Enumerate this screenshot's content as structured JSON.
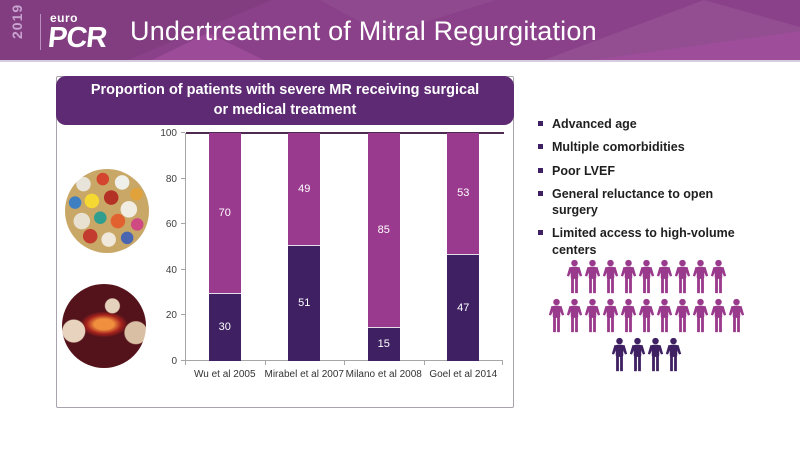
{
  "header": {
    "year": "2019",
    "logo_top": "euro",
    "logo_main": "PCR",
    "title": "Undertreatment of Mitral Regurgitation"
  },
  "chart_data": {
    "type": "bar",
    "stacked": true,
    "title": "Proportion of patients with severe MR receiving surgical or medical treatment",
    "categories": [
      "Wu et al 2005",
      "Mirabel et al 2007",
      "Milano et al 2008",
      "Goel et al 2014"
    ],
    "series": [
      {
        "name": "Surgical treatment",
        "color": "#3f2163",
        "values": [
          30,
          51,
          15,
          47
        ]
      },
      {
        "name": "Medical treatment",
        "color": "#9a3a8e",
        "values": [
          70,
          49,
          85,
          53
        ]
      }
    ],
    "ylabel": "",
    "xlabel": "",
    "ylim": [
      0,
      100
    ],
    "yticks": [
      0,
      20,
      40,
      60,
      80,
      100
    ],
    "grid": false,
    "legend": "none"
  },
  "images": {
    "pills": "photo-of-assorted-pills",
    "surgery": "photo-of-open-heart-surgery"
  },
  "bullets": {
    "items": [
      "Advanced age",
      "Multiple comorbidities",
      "Poor LVEF",
      "General reluctance to open surgery",
      "Limited access to high-volume centers"
    ]
  },
  "pictogram": {
    "rows": [
      {
        "count": 9,
        "color": "#993a8c"
      },
      {
        "count": 11,
        "color": "#993a8c"
      },
      {
        "count": 4,
        "color": "#3f2163"
      }
    ]
  },
  "colors": {
    "header_background": "#8a4189",
    "panel_title_background": "#5e2a74",
    "bar_medical": "#9a3a8e",
    "bar_surgical": "#3f2163",
    "pictogram_purple": "#993a8c",
    "pictogram_dark": "#3f2163"
  }
}
